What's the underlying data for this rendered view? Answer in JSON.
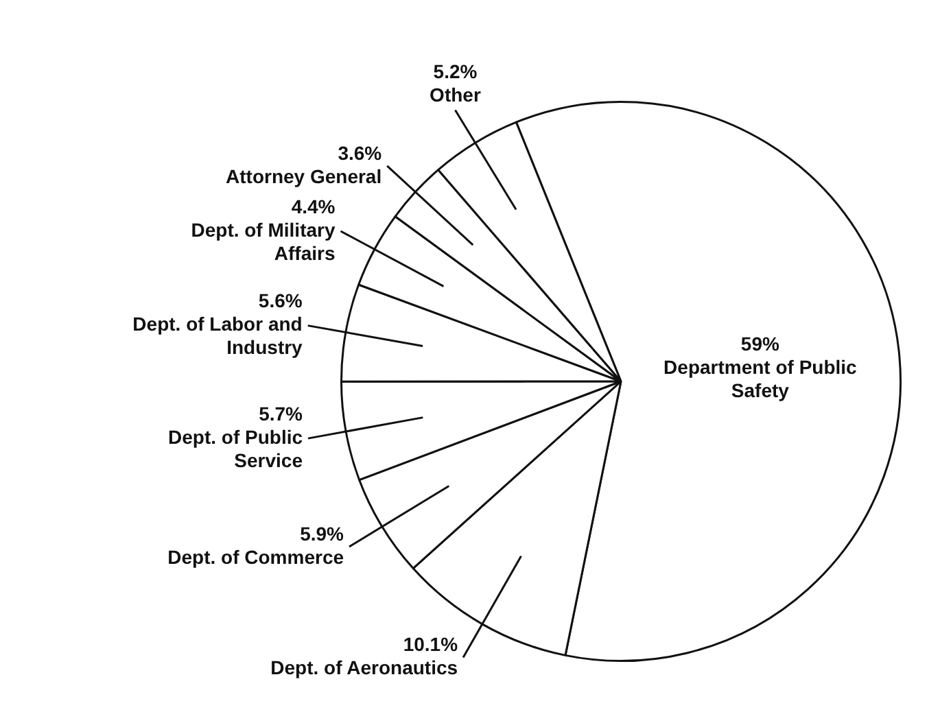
{
  "chart_data": {
    "type": "pie",
    "categories": [
      "Department of Public Safety",
      "Dept. of Aeronautics",
      "Dept. of Commerce",
      "Dept. of Public Service",
      "Dept. of Labor and Industry",
      "Dept. of Military Affairs",
      "Attorney General",
      "Other"
    ],
    "values": [
      59,
      10.1,
      5.9,
      5.7,
      5.6,
      4.4,
      3.6,
      5.2
    ],
    "value_labels": [
      "59%",
      "10.1%",
      "5.9%",
      "5.7%",
      "5.6%",
      "4.4%",
      "3.6%",
      "5.2%"
    ],
    "colors": [
      "#ffffff",
      "#ffffff",
      "#ffffff",
      "#ffffff",
      "#ffffff",
      "#ffffff",
      "#ffffff",
      "#ffffff"
    ],
    "legend": false
  }
}
